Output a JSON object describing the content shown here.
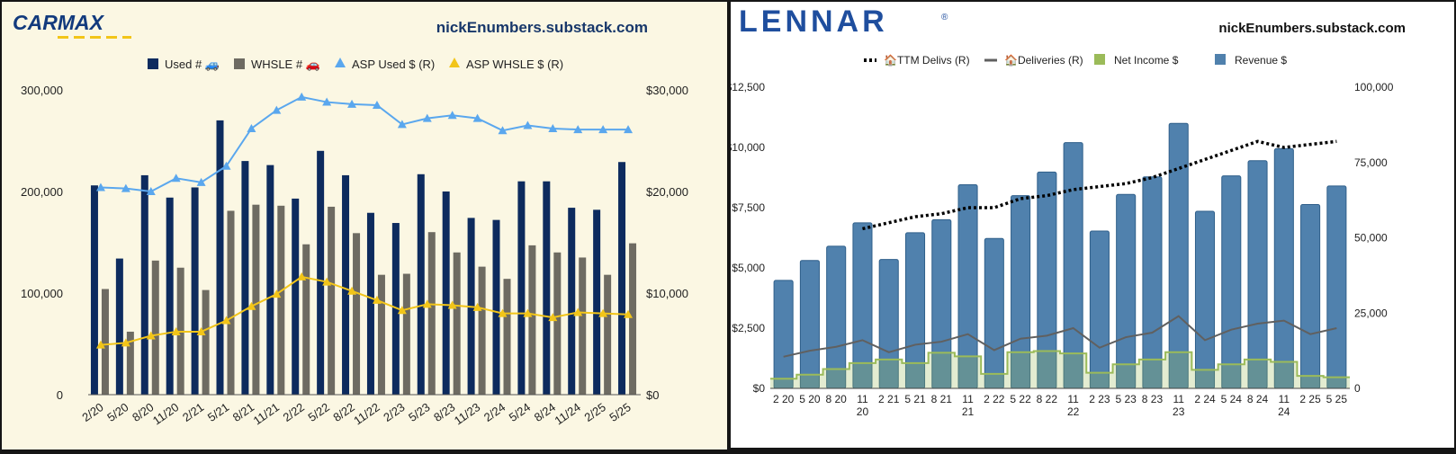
{
  "carmax": {
    "logo_text": "CARMAX",
    "site": "nickEnumbers.substack.com",
    "colors": {
      "used": "#0d2b5e",
      "whsle": "#6e6b62",
      "asp_used": "#5aa7ee",
      "asp_whsle": "#f2c519",
      "bg": "#fbf7e3"
    },
    "chart_data": {
      "type": "bar",
      "categories": [
        "2/20",
        "5/20",
        "8/20",
        "11/20",
        "2/21",
        "5/21",
        "8/21",
        "11/21",
        "2/22",
        "5/22",
        "8/22",
        "11/22",
        "2/23",
        "5/23",
        "8/23",
        "11/23",
        "2/24",
        "5/24",
        "8/24",
        "11/24",
        "2/25",
        "5/25"
      ],
      "series": [
        {
          "name": "Used # 🚙",
          "axis": "left",
          "values": [
            206000,
            134000,
            216000,
            194000,
            204000,
            270000,
            230000,
            226000,
            193000,
            240000,
            216000,
            179000,
            169000,
            217000,
            200000,
            174000,
            172000,
            210000,
            210000,
            184000,
            182000,
            229000
          ]
        },
        {
          "name": "WHSLE # 🚗",
          "axis": "left",
          "values": [
            104000,
            62000,
            132000,
            125000,
            103000,
            181000,
            187000,
            186000,
            148000,
            185000,
            159000,
            118000,
            119000,
            160000,
            140000,
            126000,
            114000,
            147000,
            140000,
            135000,
            118000,
            149000
          ]
        },
        {
          "name": "ASP Used $ (R)",
          "axis": "right",
          "type": "line",
          "values": [
            20400,
            20300,
            20000,
            21300,
            20900,
            22500,
            26200,
            28000,
            29300,
            28800,
            28600,
            28500,
            26600,
            27200,
            27500,
            27200,
            26000,
            26500,
            26200,
            26100,
            26100,
            26100
          ]
        },
        {
          "name": "ASP WHSLE $ (R)",
          "axis": "right",
          "type": "line",
          "values": [
            4900,
            5100,
            5800,
            6200,
            6200,
            7300,
            8700,
            9900,
            11600,
            11100,
            10200,
            9300,
            8300,
            8900,
            8800,
            8600,
            8000,
            8000,
            7600,
            8100,
            8000,
            7900
          ]
        }
      ],
      "ylim_left": [
        0,
        300000
      ],
      "ylim_right": [
        0,
        30000
      ],
      "yticks_left": [
        "0",
        "100,000",
        "200,000",
        "300,000"
      ],
      "yticks_right": [
        "$0",
        "$10,000",
        "$20,000",
        "$30,000"
      ],
      "legend_position": "top"
    }
  },
  "lennar": {
    "logo_text": "LENNAR",
    "logo_reg": "®",
    "site": "nickEnumbers.substack.com",
    "colors": {
      "revenue": "#5081ad",
      "net_income": "#9bbb59",
      "deliveries": "#606060",
      "ttm": "#000000"
    },
    "chart_data": {
      "type": "bar",
      "categories": [
        "2 20",
        "5 20",
        "8 20",
        "11 20",
        "2 21",
        "5 21",
        "8 21",
        "11 21",
        "2 22",
        "5 22",
        "8 22",
        "11 22",
        "2 23",
        "5 23",
        "8 23",
        "11 23",
        "2 24",
        "5 24",
        "8 24",
        "11 24",
        "2 25",
        "5 25"
      ],
      "series": [
        {
          "name": "🏠TTM Delivs (R)",
          "axis": "right",
          "type": "line",
          "values": [
            null,
            null,
            null,
            53000,
            55000,
            57000,
            58000,
            60000,
            60000,
            63000,
            64000,
            66000,
            67000,
            68000,
            70000,
            73000,
            76000,
            79000,
            82000,
            80000,
            81000,
            82000
          ]
        },
        {
          "name": "🏠Deliveries (R)",
          "axis": "right",
          "type": "line",
          "values": [
            10500,
            12500,
            13800,
            16000,
            12000,
            14500,
            15500,
            18000,
            12700,
            16500,
            17500,
            20000,
            13500,
            17000,
            18500,
            24000,
            16000,
            19500,
            21500,
            22500,
            18000,
            20000
          ]
        },
        {
          "name": "Net Income $",
          "axis": "left",
          "type": "step-area",
          "values": [
            400,
            570,
            800,
            1050,
            1200,
            1050,
            1480,
            1330,
            600,
            1500,
            1550,
            1450,
            650,
            1000,
            1200,
            1500,
            770,
            1000,
            1200,
            1100,
            520,
            460
          ]
        },
        {
          "name": "Revenue $",
          "axis": "left",
          "type": "bar",
          "values": [
            4480,
            5310,
            5900,
            6870,
            5350,
            6460,
            7000,
            8450,
            6220,
            8000,
            8980,
            10200,
            6530,
            8050,
            8780,
            11000,
            7350,
            8820,
            9450,
            9950,
            7630,
            8400
          ]
        }
      ],
      "ylim_left": [
        0,
        12500
      ],
      "ylim_right": [
        0,
        100000
      ],
      "yticks_left": [
        "$0",
        "$2,500",
        "$5,000",
        "$7,500",
        "$10,000",
        "$12,500"
      ],
      "yticks_right": [
        "0",
        "25,000",
        "50,000",
        "75,000",
        "100,000"
      ],
      "legend_position": "top"
    }
  }
}
